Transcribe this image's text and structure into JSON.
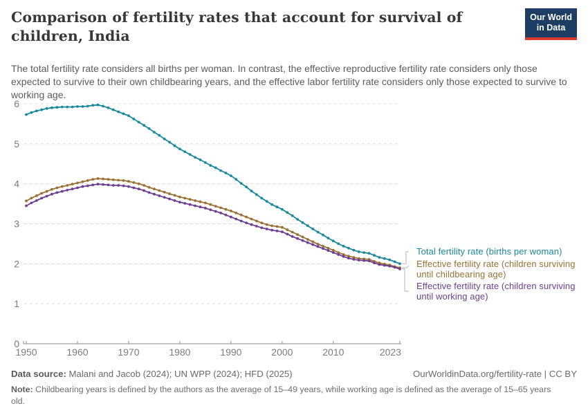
{
  "header": {
    "title": "Comparison of fertility rates that account for survival of children, India",
    "subtitle": "The total fertility rate considers all births per woman. In contrast, the effective reproductive fertility rate considers only those expected to survive to their own childbearing years, and the effective labor fertility rate considers only those expected to survive to working age.",
    "logo": {
      "line1": "Our World",
      "line2": "in Data",
      "bg_color": "#1d3d63",
      "accent_color": "#dc3a2e"
    }
  },
  "chart_data": {
    "type": "line",
    "title": "Comparison of fertility rates that account for survival of children, India",
    "xlabel": "",
    "ylabel": "",
    "xlim": [
      1950,
      2023
    ],
    "ylim": [
      0,
      6
    ],
    "xticks": [
      1950,
      1960,
      1970,
      1980,
      1990,
      2000,
      2010,
      2023
    ],
    "yticks": [
      0,
      1,
      2,
      3,
      4,
      5,
      6
    ],
    "grid": "horizontal-dashed",
    "grid_color": "#dcdcdc",
    "axis_color": "#a0a0a0",
    "tick_label_color": "#7b7b7b",
    "connector_color": "#c2c2c2",
    "marker": "circle",
    "legend_position": "right-of-line-ends",
    "years": [
      1950,
      1951,
      1952,
      1953,
      1954,
      1955,
      1956,
      1957,
      1958,
      1959,
      1960,
      1961,
      1962,
      1963,
      1964,
      1965,
      1966,
      1967,
      1968,
      1969,
      1970,
      1971,
      1972,
      1973,
      1974,
      1975,
      1976,
      1977,
      1978,
      1979,
      1980,
      1981,
      1982,
      1983,
      1984,
      1985,
      1986,
      1987,
      1988,
      1989,
      1990,
      1991,
      1992,
      1993,
      1994,
      1995,
      1996,
      1997,
      1998,
      1999,
      2000,
      2001,
      2002,
      2003,
      2004,
      2005,
      2006,
      2007,
      2008,
      2009,
      2010,
      2011,
      2012,
      2013,
      2014,
      2015,
      2016,
      2017,
      2018,
      2019,
      2020,
      2021,
      2022,
      2023
    ],
    "series": [
      {
        "name": "Total fertility rate (births per woman)",
        "color": "#19899b",
        "values": [
          5.73,
          5.78,
          5.82,
          5.85,
          5.88,
          5.9,
          5.91,
          5.92,
          5.92,
          5.92,
          5.93,
          5.93,
          5.94,
          5.96,
          5.97,
          5.94,
          5.9,
          5.85,
          5.8,
          5.75,
          5.7,
          5.62,
          5.54,
          5.46,
          5.38,
          5.29,
          5.21,
          5.12,
          5.04,
          4.95,
          4.87,
          4.8,
          4.73,
          4.66,
          4.6,
          4.53,
          4.46,
          4.4,
          4.33,
          4.27,
          4.2,
          4.11,
          4.01,
          3.92,
          3.82,
          3.73,
          3.64,
          3.56,
          3.48,
          3.42,
          3.36,
          3.28,
          3.2,
          3.11,
          3.03,
          2.95,
          2.87,
          2.79,
          2.72,
          2.64,
          2.57,
          2.5,
          2.44,
          2.39,
          2.34,
          2.3,
          2.28,
          2.26,
          2.21,
          2.16,
          2.13,
          2.1,
          2.05,
          2.0
        ]
      },
      {
        "name": "Effective fertility rate (children surviving until childbearing age)",
        "color": "#9a7135",
        "values": [
          3.57,
          3.64,
          3.7,
          3.76,
          3.81,
          3.86,
          3.9,
          3.93,
          3.96,
          3.99,
          4.02,
          4.05,
          4.08,
          4.11,
          4.13,
          4.12,
          4.11,
          4.1,
          4.09,
          4.08,
          4.06,
          4.03,
          4.0,
          3.96,
          3.91,
          3.87,
          3.83,
          3.79,
          3.75,
          3.71,
          3.67,
          3.64,
          3.61,
          3.58,
          3.55,
          3.52,
          3.48,
          3.44,
          3.4,
          3.36,
          3.32,
          3.27,
          3.22,
          3.17,
          3.12,
          3.07,
          3.02,
          2.98,
          2.95,
          2.93,
          2.91,
          2.85,
          2.79,
          2.73,
          2.67,
          2.61,
          2.55,
          2.49,
          2.44,
          2.39,
          2.34,
          2.28,
          2.23,
          2.19,
          2.16,
          2.13,
          2.12,
          2.11,
          2.06,
          2.02,
          1.99,
          1.97,
          1.93,
          1.9
        ]
      },
      {
        "name": "Effective fertility rate (children surviving until working age)",
        "color": "#6d3e91",
        "values": [
          3.45,
          3.52,
          3.58,
          3.64,
          3.69,
          3.74,
          3.78,
          3.81,
          3.84,
          3.87,
          3.9,
          3.93,
          3.95,
          3.97,
          3.99,
          3.98,
          3.97,
          3.96,
          3.96,
          3.95,
          3.93,
          3.9,
          3.87,
          3.83,
          3.78,
          3.74,
          3.7,
          3.66,
          3.62,
          3.58,
          3.54,
          3.51,
          3.48,
          3.45,
          3.42,
          3.39,
          3.35,
          3.31,
          3.27,
          3.22,
          3.17,
          3.12,
          3.07,
          3.02,
          2.98,
          2.94,
          2.9,
          2.87,
          2.84,
          2.82,
          2.8,
          2.74,
          2.68,
          2.63,
          2.58,
          2.53,
          2.48,
          2.43,
          2.38,
          2.33,
          2.28,
          2.23,
          2.18,
          2.14,
          2.11,
          2.09,
          2.08,
          2.07,
          2.02,
          1.98,
          1.96,
          1.94,
          1.91,
          1.87
        ]
      }
    ]
  },
  "footer": {
    "datasource_label": "Data source:",
    "datasource_value": " Malani and Jacob (2024); UN WPP (2024); HFD (2025)",
    "link": "OurWorldinData.org/fertility-rate | CC BY",
    "note_label": "Note:",
    "note_value": " Childbearing years is defined by the authors as the average of 15–49 years, while working age is defined as the average of 15–65 years old."
  }
}
